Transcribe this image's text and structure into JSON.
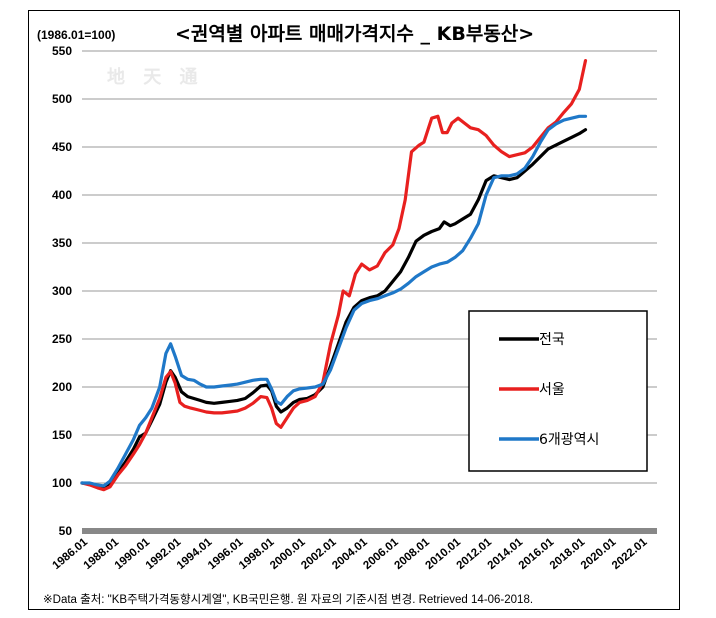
{
  "title": "<권역별 아파트 매매가격지수 _ KB부동산>",
  "index_note": "(1986.01=100)",
  "watermark": "地 天 通",
  "source": "※Data 출처: \"KB주택가격동향시계열\", KB국민은행. 원 자료의 기준시점 변경. Retrieved 14-06-2018.",
  "colors": {
    "national": "#000000",
    "seoul": "#e8201f",
    "metro": "#1f78c8",
    "floor": "#888888"
  },
  "chart_data": {
    "type": "line",
    "title": "<권역별 아파트 매매가격지수 _ KB부동산>",
    "ylabel": "(1986.01=100)",
    "xlabel": "",
    "ylim": [
      50,
      550
    ],
    "yticks": [
      50,
      100,
      150,
      200,
      250,
      300,
      350,
      400,
      450,
      500,
      550
    ],
    "xlim": [
      1986,
      2023
    ],
    "xticks": [
      "1986.01",
      "1988.01",
      "1990.01",
      "1992.01",
      "1994.01",
      "1996.01",
      "1998.01",
      "2000.01",
      "2002.01",
      "2004.01",
      "2006.01",
      "2008.01",
      "2010.01",
      "2012.01",
      "2014.01",
      "2016.01",
      "2018.01",
      "2020.01",
      "2022.01"
    ],
    "grid": true,
    "legend_position": "bottom-right",
    "series": [
      {
        "name": "전국",
        "color": "#000000",
        "points": [
          [
            1986.0,
            100
          ],
          [
            1986.5,
            99
          ],
          [
            1987.0,
            97
          ],
          [
            1987.4,
            95
          ],
          [
            1987.8,
            98
          ],
          [
            1988.3,
            110
          ],
          [
            1988.8,
            122
          ],
          [
            1989.3,
            135
          ],
          [
            1989.7,
            148
          ],
          [
            1990.1,
            152
          ],
          [
            1990.5,
            165
          ],
          [
            1991.0,
            182
          ],
          [
            1991.4,
            205
          ],
          [
            1991.7,
            217
          ],
          [
            1992.0,
            210
          ],
          [
            1992.4,
            195
          ],
          [
            1992.8,
            190
          ],
          [
            1993.2,
            188
          ],
          [
            1993.6,
            186
          ],
          [
            1994.0,
            184
          ],
          [
            1994.5,
            183
          ],
          [
            1995.0,
            184
          ],
          [
            1995.5,
            185
          ],
          [
            1996.0,
            186
          ],
          [
            1996.5,
            188
          ],
          [
            1997.0,
            194
          ],
          [
            1997.5,
            201
          ],
          [
            1997.9,
            202
          ],
          [
            1998.2,
            196
          ],
          [
            1998.5,
            180
          ],
          [
            1998.8,
            174
          ],
          [
            1999.2,
            178
          ],
          [
            1999.6,
            184
          ],
          [
            2000.0,
            187
          ],
          [
            2000.5,
            188
          ],
          [
            2001.0,
            192
          ],
          [
            2001.5,
            200
          ],
          [
            2002.0,
            222
          ],
          [
            2002.5,
            245
          ],
          [
            2003.0,
            268
          ],
          [
            2003.5,
            283
          ],
          [
            2004.0,
            290
          ],
          [
            2004.5,
            293
          ],
          [
            2005.0,
            295
          ],
          [
            2005.5,
            300
          ],
          [
            2006.0,
            310
          ],
          [
            2006.5,
            320
          ],
          [
            2007.0,
            335
          ],
          [
            2007.5,
            352
          ],
          [
            2008.0,
            358
          ],
          [
            2008.5,
            362
          ],
          [
            2009.0,
            365
          ],
          [
            2009.3,
            372
          ],
          [
            2009.7,
            368
          ],
          [
            2010.0,
            370
          ],
          [
            2010.5,
            375
          ],
          [
            2011.0,
            380
          ],
          [
            2011.5,
            395
          ],
          [
            2012.0,
            415
          ],
          [
            2012.5,
            420
          ],
          [
            2013.0,
            418
          ],
          [
            2013.5,
            416
          ],
          [
            2014.0,
            418
          ],
          [
            2014.5,
            425
          ],
          [
            2015.0,
            432
          ],
          [
            2015.5,
            440
          ],
          [
            2016.0,
            448
          ],
          [
            2016.5,
            452
          ],
          [
            2017.0,
            456
          ],
          [
            2017.5,
            460
          ],
          [
            2018.0,
            464
          ],
          [
            2018.4,
            468
          ]
        ]
      },
      {
        "name": "서울",
        "color": "#e8201f",
        "points": [
          [
            1986.0,
            100
          ],
          [
            1986.5,
            98
          ],
          [
            1987.0,
            95
          ],
          [
            1987.4,
            93
          ],
          [
            1987.8,
            96
          ],
          [
            1988.3,
            108
          ],
          [
            1988.8,
            118
          ],
          [
            1989.3,
            130
          ],
          [
            1989.7,
            140
          ],
          [
            1990.1,
            152
          ],
          [
            1990.5,
            168
          ],
          [
            1991.0,
            188
          ],
          [
            1991.4,
            210
          ],
          [
            1991.7,
            216
          ],
          [
            1992.0,
            204
          ],
          [
            1992.3,
            184
          ],
          [
            1992.6,
            180
          ],
          [
            1993.0,
            178
          ],
          [
            1993.5,
            176
          ],
          [
            1994.0,
            174
          ],
          [
            1994.5,
            173
          ],
          [
            1995.0,
            173
          ],
          [
            1995.5,
            174
          ],
          [
            1996.0,
            175
          ],
          [
            1996.5,
            178
          ],
          [
            1997.0,
            183
          ],
          [
            1997.5,
            190
          ],
          [
            1997.9,
            189
          ],
          [
            1998.2,
            178
          ],
          [
            1998.5,
            162
          ],
          [
            1998.8,
            158
          ],
          [
            1999.2,
            168
          ],
          [
            1999.6,
            178
          ],
          [
            2000.0,
            184
          ],
          [
            2000.5,
            186
          ],
          [
            2001.0,
            190
          ],
          [
            2001.5,
            205
          ],
          [
            2002.0,
            245
          ],
          [
            2002.5,
            275
          ],
          [
            2002.8,
            300
          ],
          [
            2003.2,
            295
          ],
          [
            2003.6,
            318
          ],
          [
            2004.0,
            328
          ],
          [
            2004.5,
            322
          ],
          [
            2005.0,
            326
          ],
          [
            2005.5,
            340
          ],
          [
            2006.0,
            348
          ],
          [
            2006.4,
            365
          ],
          [
            2006.8,
            395
          ],
          [
            2007.2,
            445
          ],
          [
            2007.7,
            452
          ],
          [
            2008.0,
            455
          ],
          [
            2008.5,
            480
          ],
          [
            2008.9,
            482
          ],
          [
            2009.2,
            465
          ],
          [
            2009.5,
            465
          ],
          [
            2009.8,
            475
          ],
          [
            2010.2,
            480
          ],
          [
            2010.6,
            475
          ],
          [
            2011.0,
            470
          ],
          [
            2011.5,
            468
          ],
          [
            2012.0,
            462
          ],
          [
            2012.5,
            452
          ],
          [
            2013.0,
            445
          ],
          [
            2013.5,
            440
          ],
          [
            2014.0,
            442
          ],
          [
            2014.5,
            444
          ],
          [
            2015.0,
            450
          ],
          [
            2015.5,
            460
          ],
          [
            2016.0,
            470
          ],
          [
            2016.5,
            476
          ],
          [
            2017.0,
            486
          ],
          [
            2017.5,
            495
          ],
          [
            2018.0,
            510
          ],
          [
            2018.4,
            540
          ]
        ]
      },
      {
        "name": "6개광역시",
        "color": "#1f78c8",
        "points": [
          [
            1986.0,
            100
          ],
          [
            1986.5,
            100
          ],
          [
            1987.0,
            98
          ],
          [
            1987.4,
            97
          ],
          [
            1987.8,
            102
          ],
          [
            1988.3,
            115
          ],
          [
            1988.8,
            130
          ],
          [
            1989.3,
            145
          ],
          [
            1989.7,
            160
          ],
          [
            1990.1,
            168
          ],
          [
            1990.5,
            178
          ],
          [
            1991.0,
            200
          ],
          [
            1991.4,
            235
          ],
          [
            1991.7,
            245
          ],
          [
            1992.0,
            232
          ],
          [
            1992.4,
            212
          ],
          [
            1992.8,
            208
          ],
          [
            1993.2,
            207
          ],
          [
            1993.6,
            203
          ],
          [
            1994.0,
            200
          ],
          [
            1994.5,
            200
          ],
          [
            1995.0,
            201
          ],
          [
            1995.5,
            202
          ],
          [
            1996.0,
            203
          ],
          [
            1996.5,
            205
          ],
          [
            1997.0,
            207
          ],
          [
            1997.5,
            208
          ],
          [
            1997.9,
            208
          ],
          [
            1998.2,
            198
          ],
          [
            1998.5,
            185
          ],
          [
            1998.8,
            182
          ],
          [
            1999.2,
            190
          ],
          [
            1999.6,
            196
          ],
          [
            2000.0,
            198
          ],
          [
            2000.5,
            199
          ],
          [
            2001.0,
            200
          ],
          [
            2001.5,
            203
          ],
          [
            2002.0,
            218
          ],
          [
            2002.5,
            240
          ],
          [
            2003.0,
            262
          ],
          [
            2003.5,
            280
          ],
          [
            2004.0,
            287
          ],
          [
            2004.5,
            290
          ],
          [
            2005.0,
            292
          ],
          [
            2005.5,
            295
          ],
          [
            2006.0,
            298
          ],
          [
            2006.5,
            302
          ],
          [
            2007.0,
            308
          ],
          [
            2007.5,
            315
          ],
          [
            2008.0,
            320
          ],
          [
            2008.5,
            325
          ],
          [
            2009.0,
            328
          ],
          [
            2009.5,
            330
          ],
          [
            2010.0,
            335
          ],
          [
            2010.5,
            342
          ],
          [
            2011.0,
            355
          ],
          [
            2011.5,
            370
          ],
          [
            2012.0,
            400
          ],
          [
            2012.5,
            418
          ],
          [
            2013.0,
            420
          ],
          [
            2013.5,
            420
          ],
          [
            2014.0,
            422
          ],
          [
            2014.5,
            428
          ],
          [
            2015.0,
            440
          ],
          [
            2015.5,
            455
          ],
          [
            2016.0,
            468
          ],
          [
            2016.5,
            474
          ],
          [
            2017.0,
            478
          ],
          [
            2017.5,
            480
          ],
          [
            2018.0,
            482
          ],
          [
            2018.4,
            482
          ]
        ]
      }
    ]
  }
}
